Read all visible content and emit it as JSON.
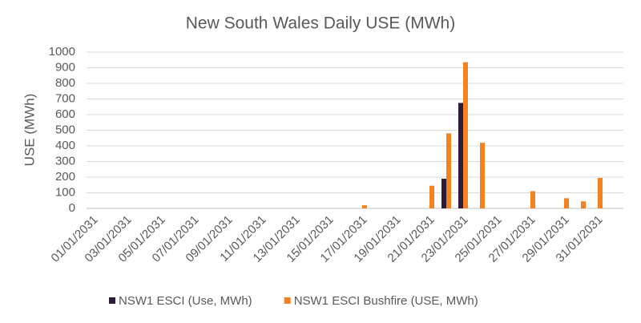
{
  "chart_data": {
    "type": "bar",
    "title": "New South Wales Daily USE (MWh)",
    "y_label": "USE (MWh)",
    "categories": [
      "01/01/2031",
      null,
      "03/01/2031",
      null,
      "05/01/2031",
      null,
      "07/01/2031",
      null,
      "09/01/2031",
      null,
      "11/01/2031",
      null,
      "13/01/2031",
      null,
      "15/01/2031",
      null,
      "17/01/2031",
      null,
      "19/01/2031",
      null,
      "21/01/2031",
      null,
      "23/01/2031",
      null,
      "25/01/2031",
      null,
      "27/01/2031",
      null,
      "29/01/2031",
      null,
      "31/01/2031"
    ],
    "series": [
      {
        "name": "NSW1 ESCI (Use, MWh)",
        "color": "#2d1b3d",
        "values": [
          0,
          0,
          0,
          0,
          0,
          0,
          0,
          0,
          0,
          0,
          0,
          0,
          0,
          0,
          0,
          0,
          0,
          0,
          0,
          0,
          0,
          190,
          675,
          0,
          0,
          0,
          0,
          0,
          0,
          0,
          0
        ]
      },
      {
        "name": "NSW1 ESCI  Bushfire (USE, MWh)",
        "color": "#f58220",
        "values": [
          0,
          0,
          0,
          0,
          0,
          0,
          0,
          0,
          0,
          0,
          0,
          0,
          0,
          0,
          0,
          0,
          20,
          0,
          0,
          0,
          145,
          480,
          935,
          420,
          0,
          0,
          110,
          0,
          65,
          45,
          195
        ]
      }
    ],
    "ylim": [
      0,
      1000
    ],
    "yticks": [
      0,
      100,
      200,
      300,
      400,
      500,
      600,
      700,
      800,
      900,
      1000
    ],
    "grid": true,
    "legend": "bottom"
  }
}
